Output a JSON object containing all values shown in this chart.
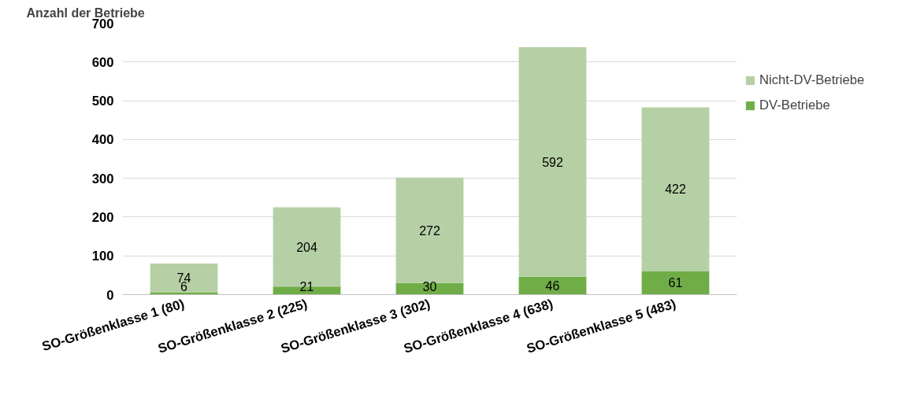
{
  "chart_data": {
    "type": "bar",
    "stacked": true,
    "ylabel": "Anzahl der Betriebe",
    "categories": [
      "SO-Größenklasse 1 (80)",
      "SO-Größenklasse 2 (225)",
      "SO-Größenklasse 3 (302)",
      "SO-Größenklasse 4 (638)",
      "SO-Größenklasse 5 (483)"
    ],
    "series": [
      {
        "name": "DV-Betriebe",
        "color": "#70ad47",
        "values": [
          6,
          21,
          30,
          46,
          61
        ]
      },
      {
        "name": "Nicht-DV-Betriebe",
        "color": "#b5d0a5",
        "values": [
          74,
          204,
          272,
          592,
          422
        ]
      }
    ],
    "ylim": [
      0,
      700
    ],
    "yticks": [
      0,
      100,
      200,
      300,
      400,
      500,
      600,
      700
    ],
    "grid": "y",
    "legend": "right",
    "data_labels": true
  }
}
